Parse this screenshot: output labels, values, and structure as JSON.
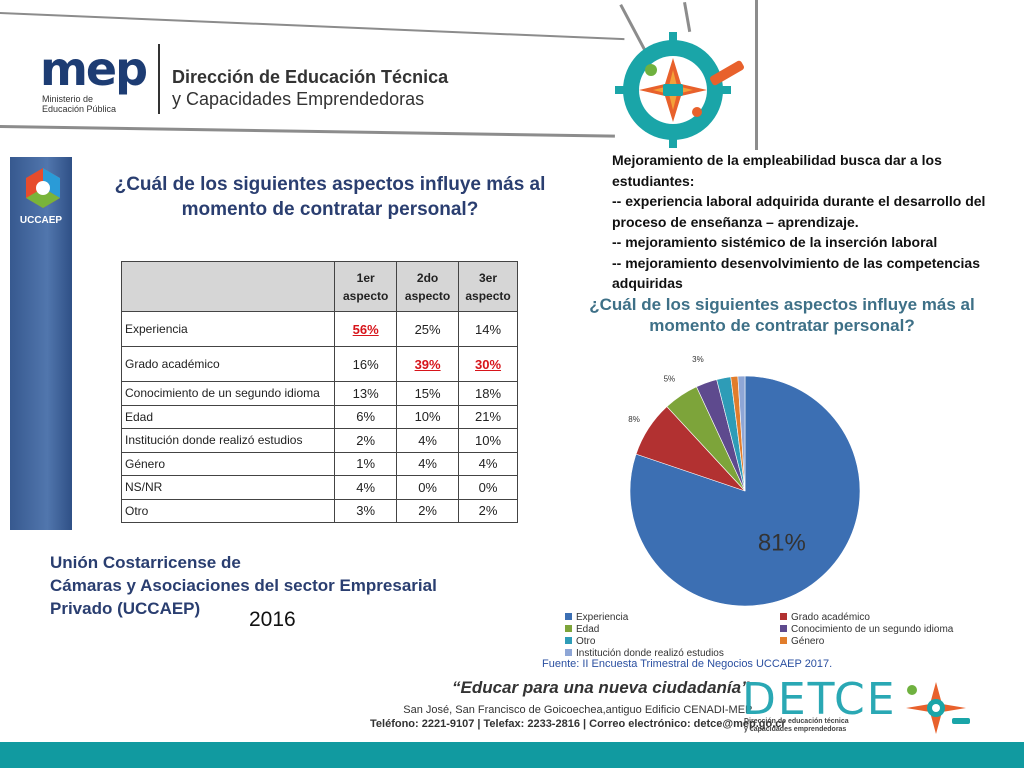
{
  "header": {
    "logo_text": "mep",
    "logo_sub_line1": "Ministerio de",
    "logo_sub_line2": "Educación Pública",
    "title_line1": "Dirección de Educación Técnica",
    "title_line2": "y Capacidades Emprendedoras"
  },
  "sidebar": {
    "label": "UCCAEP"
  },
  "table_section": {
    "question": "¿Cuál de los siguientes aspectos influye más al momento de contratar personal?",
    "headers": [
      "",
      "1er aspecto",
      "2do aspecto",
      "3er aspecto"
    ],
    "rows": [
      {
        "label": "Experiencia",
        "v1": "56%",
        "v2": "25%",
        "v3": "14%"
      },
      {
        "label": "Grado académico",
        "v1": "16%",
        "v2": "39%",
        "v3": "30%"
      },
      {
        "label": "Conocimiento de un segundo idioma",
        "v1": "13%",
        "v2": "15%",
        "v3": "18%"
      },
      {
        "label": "Edad",
        "v1": "6%",
        "v2": "10%",
        "v3": "21%"
      },
      {
        "label": "Institución donde realizó estudios",
        "v1": "2%",
        "v2": "4%",
        "v3": "10%"
      },
      {
        "label": "Género",
        "v1": "1%",
        "v2": "4%",
        "v3": "4%"
      },
      {
        "label": "NS/NR",
        "v1": "4%",
        "v2": "0%",
        "v3": "0%"
      },
      {
        "label": "Otro",
        "v1": "3%",
        "v2": "2%",
        "v3": "2%"
      }
    ]
  },
  "note": {
    "line1": "Mejoramiento de la empleabilidad busca dar a los estudiantes:",
    "line2": "-- experiencia laboral adquirida durante el desarrollo del proceso de enseñanza – aprendizaje.",
    "line3": "-- mejoramiento sistémico de la inserción laboral",
    "line4": "-- mejoramiento desenvolvimiento de las competencias adquiridas"
  },
  "source": {
    "line1": "Unión Costarricense de",
    "line2": "Cámaras y Asociaciones del sector Empresarial",
    "line3": "Privado (UCCAEP)",
    "year": "2016"
  },
  "chart_data": {
    "type": "pie",
    "title": "¿Cuál de los siguientes aspectos influye más al momento de contratar personal?",
    "categories": [
      "Experiencia",
      "Grado académico",
      "Edad",
      "Conocimiento de un segundo idioma",
      "Otro",
      "Género",
      "Institución donde realizó estudios"
    ],
    "values": [
      81,
      8,
      5,
      3,
      2,
      1,
      1
    ],
    "labels": [
      "81%",
      "8%",
      "5%",
      "3%",
      "2%",
      "1%",
      "1%"
    ],
    "colors": [
      "#3c6fb3",
      "#b23131",
      "#7da43a",
      "#5e4a8e",
      "#2e9cb7",
      "#e17d2c",
      "#8ea6d6"
    ],
    "legend_position": "bottom",
    "source_note": "Fuente: II Encuesta Trimestral de Negocios UCCAEP 2017."
  },
  "footer": {
    "motto": "“Educar para una nueva ciudadanía”",
    "address_line1": "San José, San Francisco de Goicoechea,antiguo Edificio CENADI-MEP",
    "address_line2": "Teléfono: 2221-9107 | Telefax: 2233-2816 | Correo electrónico: detce@mep.go.cr",
    "brand": "DETCE",
    "brand_sub_line1": "Dirección de educación técnica",
    "brand_sub_line2": "y capacidades emprendedoras"
  }
}
